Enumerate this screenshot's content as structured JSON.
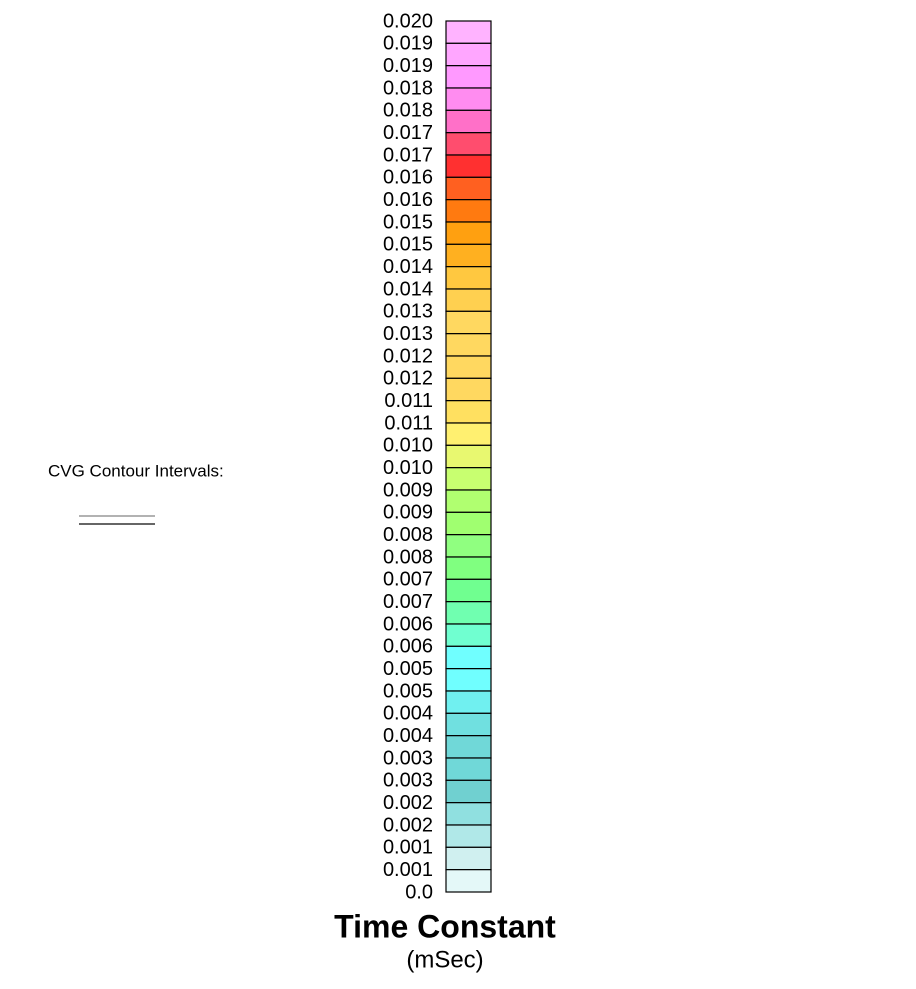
{
  "side_label": "CVG Contour Intervals:",
  "legend": {
    "title": "Time Constant",
    "unit": "(mSec)",
    "labels": [
      "0.020",
      "0.019",
      "0.019",
      "0.018",
      "0.018",
      "0.017",
      "0.017",
      "0.016",
      "0.016",
      "0.015",
      "0.015",
      "0.014",
      "0.014",
      "0.013",
      "0.013",
      "0.012",
      "0.012",
      "0.011",
      "0.011",
      "0.010",
      "0.010",
      "0.009",
      "0.009",
      "0.008",
      "0.008",
      "0.007",
      "0.007",
      "0.006",
      "0.006",
      "0.005",
      "0.005",
      "0.004",
      "0.004",
      "0.003",
      "0.003",
      "0.002",
      "0.002",
      "0.001",
      "0.001",
      "0.0"
    ],
    "colors": [
      "#ffb3ff",
      "#ffa6ff",
      "#ff99ff",
      "#ff8cf0",
      "#ff70c8",
      "#ff4d6e",
      "#ff3030",
      "#ff6020",
      "#ff7a10",
      "#ffa010",
      "#ffb020",
      "#ffc840",
      "#ffd050",
      "#ffd860",
      "#ffd860",
      "#ffd860",
      "#ffd860",
      "#ffe060",
      "#fff070",
      "#e8f870",
      "#c8ff70",
      "#b0ff70",
      "#a0ff70",
      "#90ff80",
      "#80ff80",
      "#70ff90",
      "#70ffb0",
      "#70ffd0",
      "#70ffff",
      "#70ffff",
      "#70f0f0",
      "#70e0e0",
      "#70d8d8",
      "#70d8d8",
      "#70d0d0",
      "#90e0e0",
      "#b0e8e8",
      "#d0f0f0",
      "#e4f8f8"
    ]
  }
}
